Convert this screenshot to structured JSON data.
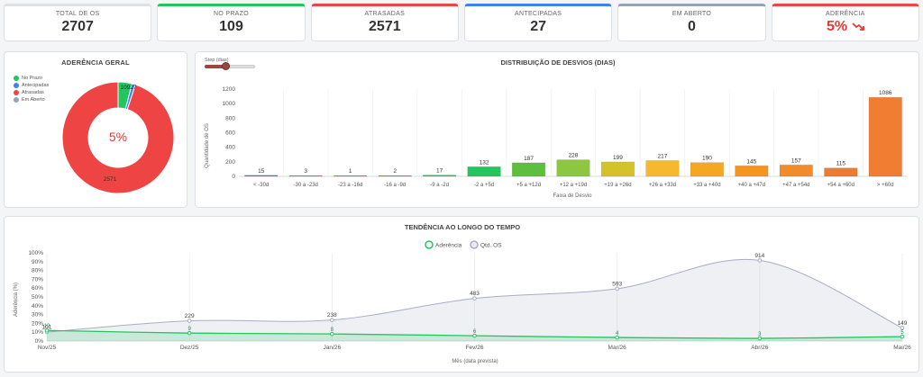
{
  "kpis": [
    {
      "label": "TOTAL DE OS",
      "value": "2707",
      "accent": "#dde0e4"
    },
    {
      "label": "NO PRAZO",
      "value": "109",
      "accent": "#22c55e"
    },
    {
      "label": "ATRASADAS",
      "value": "2571",
      "accent": "#ef4444"
    },
    {
      "label": "ANTECIPADAS",
      "value": "27",
      "accent": "#3b82f6"
    },
    {
      "label": "EM ABERTO",
      "value": "0",
      "accent": "#94a3b8"
    },
    {
      "label": "ADERÊNCIA",
      "value": "5%",
      "accent": "#ef4444",
      "trend_icon": "trend-down-icon"
    }
  ],
  "donut": {
    "title": "ADERÊNCIA GERAL",
    "center_label": "5%",
    "legend": [
      {
        "label": "No Prazo",
        "color": "#22c55e"
      },
      {
        "label": "Antecipadas",
        "color": "#3b82f6"
      },
      {
        "label": "Atrasadas",
        "color": "#ef4444"
      },
      {
        "label": "Em Aberto",
        "color": "#94a3b8"
      }
    ],
    "labels": {
      "no_prazo": "109",
      "antecipadas": "27",
      "atrasadas": "2571"
    }
  },
  "slider": {
    "label": "Step (dias)"
  },
  "chart_data": [
    {
      "type": "pie",
      "title": "ADERÊNCIA GERAL",
      "categories": [
        "No Prazo",
        "Antecipadas",
        "Atrasadas",
        "Em Aberto"
      ],
      "values": [
        109,
        27,
        2571,
        0
      ],
      "colors": [
        "#22c55e",
        "#3b82f6",
        "#ef4444",
        "#94a3b8"
      ]
    },
    {
      "type": "bar",
      "title": "DISTRIBUIÇÃO DE DESVIOS (DIAS)",
      "xlabel": "Faixa de Desvio",
      "ylabel": "Quantidade de OS",
      "ylim": [
        0,
        1200
      ],
      "yticks": [
        0,
        200,
        400,
        600,
        800,
        1000,
        1200
      ],
      "categories": [
        "< -30d",
        "-30 a -23d",
        "-23 a -16d",
        "-16 a -9d",
        "-9 a -2d",
        "-2 a +5d",
        "+5 a +12d",
        "+12 a +19d",
        "+19 a +26d",
        "+26 a +33d",
        "+33 a +40d",
        "+40 a +47d",
        "+47 a +54d",
        "+54 a +60d",
        "> +60d"
      ],
      "values": [
        15,
        3,
        1,
        2,
        17,
        132,
        187,
        228,
        199,
        217,
        190,
        145,
        157,
        115,
        1086
      ],
      "colors": [
        "#3b82f6",
        "#3b82f6",
        "#3b82f6",
        "#3b82f6",
        "#22c55e",
        "#22c55e",
        "#5cbf3e",
        "#8dc63f",
        "#d4c22b",
        "#f5b82e",
        "#f5a623",
        "#f5941e",
        "#f28c28",
        "#ee7b30",
        "#f07d32"
      ]
    },
    {
      "type": "line",
      "title": "TENDÊNCIA AO LONGO DO TEMPO",
      "xlabel": "Mês (data prevista)",
      "ylabel": "Aderência (%)",
      "categories": [
        "Nov/25",
        "Dez/25",
        "Jan/26",
        "Fev/26",
        "Mar/26",
        "Abr/26",
        "Mai/26"
      ],
      "yticks": [
        "0%",
        "10%",
        "20%",
        "30%",
        "40%",
        "50%",
        "60%",
        "70%",
        "80%",
        "90%",
        "100%"
      ],
      "series": [
        {
          "name": "Aderência",
          "values": [
            12,
            9,
            8,
            6,
            4,
            3,
            5
          ],
          "labels": [
            "12",
            "9",
            "8",
            "6",
            "4",
            "3",
            "5"
          ],
          "color": "#22c55e"
        },
        {
          "name": "Qtd. OS",
          "values": [
            101,
            229,
            238,
            483,
            593,
            914,
            149
          ],
          "color": "#a7adc4"
        }
      ]
    }
  ]
}
